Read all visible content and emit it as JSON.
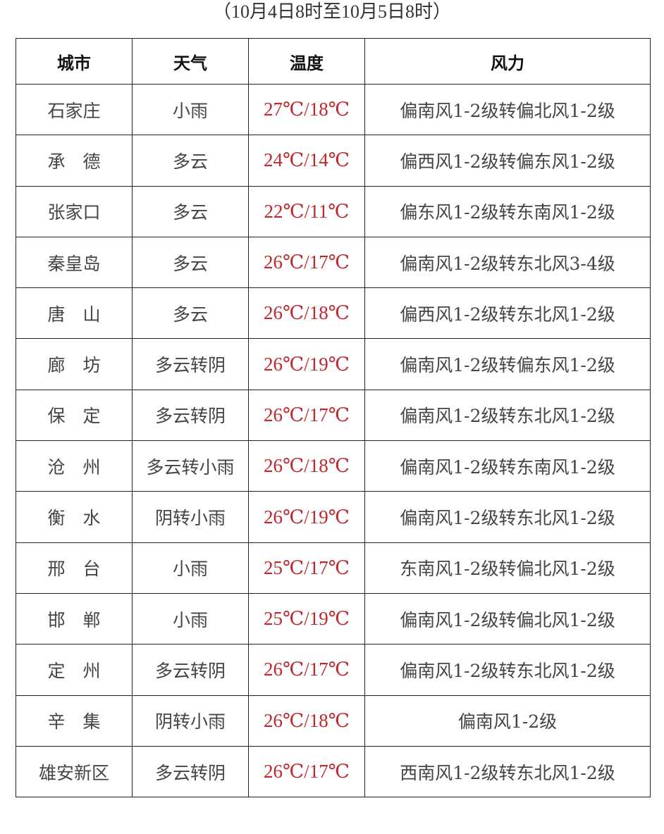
{
  "subtitle": "（10月4日8时至10月5日8时）",
  "headers": [
    "城市",
    "天气",
    "温度",
    "风力"
  ],
  "colors": {
    "temperature": "#c0272d",
    "text": "#444444",
    "border": "#222222"
  },
  "rows": [
    {
      "city": "石家庄",
      "weather": "小雨",
      "temp": "27℃/18℃",
      "wind": "偏南风1-2级转偏北风1-2级"
    },
    {
      "city": "承　德",
      "weather": "多云",
      "temp": "24℃/14℃",
      "wind": "偏西风1-2级转偏东风1-2级"
    },
    {
      "city": "张家口",
      "weather": "多云",
      "temp": "22℃/11℃",
      "wind": "偏东风1-2级转东南风1-2级"
    },
    {
      "city": "秦皇岛",
      "weather": "多云",
      "temp": "26℃/17℃",
      "wind": "偏南风1-2级转东北风3-4级"
    },
    {
      "city": "唐　山",
      "weather": "多云",
      "temp": "26℃/18℃",
      "wind": "偏西风1-2级转东北风1-2级"
    },
    {
      "city": "廊　坊",
      "weather": "多云转阴",
      "temp": "26℃/19℃",
      "wind": "偏南风1-2级转偏东风1-2级"
    },
    {
      "city": "保　定",
      "weather": "多云转阴",
      "temp": "26℃/17℃",
      "wind": "偏南风1-2级转东北风1-2级"
    },
    {
      "city": "沧　州",
      "weather": "多云转小雨",
      "temp": "26℃/18℃",
      "wind": "偏南风1-2级转东南风1-2级"
    },
    {
      "city": "衡　水",
      "weather": "阴转小雨",
      "temp": "26℃/19℃",
      "wind": "偏南风1-2级转东北风1-2级"
    },
    {
      "city": "邢　台",
      "weather": "小雨",
      "temp": "25℃/17℃",
      "wind": "东南风1-2级转偏北风1-2级"
    },
    {
      "city": "邯　郸",
      "weather": "小雨",
      "temp": "25℃/19℃",
      "wind": "偏南风1-2级转偏北风1-2级"
    },
    {
      "city": "定　州",
      "weather": "多云转阴",
      "temp": "26℃/17℃",
      "wind": "偏南风1-2级转东北风1-2级"
    },
    {
      "city": "辛　集",
      "weather": "阴转小雨",
      "temp": "26℃/18℃",
      "wind": "偏南风1-2级"
    },
    {
      "city": "雄安新区",
      "weather": "多云转阴",
      "temp": "26℃/17℃",
      "wind": "西南风1-2级转东北风1-2级"
    }
  ]
}
